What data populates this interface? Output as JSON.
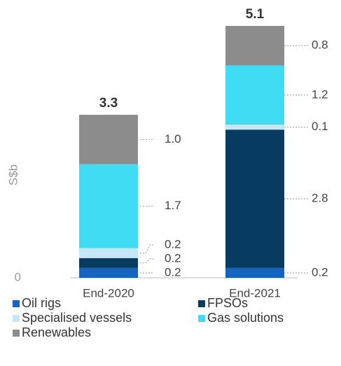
{
  "chart_data": {
    "type": "stacked_bar",
    "ylabel": "S$b",
    "categories": [
      "End-2020",
      "End-2021"
    ],
    "totals": [
      3.3,
      5.1
    ],
    "series": [
      {
        "name": "Oil rigs",
        "color": "#1565c0",
        "values": [
          0.2,
          0.2
        ]
      },
      {
        "name": "FPSOs",
        "color": "#073b60",
        "values": [
          0.2,
          2.8
        ]
      },
      {
        "name": "Specialised vessels",
        "color": "#c6e7f8",
        "values": [
          0.2,
          0.1
        ]
      },
      {
        "name": "Gas solutions",
        "color": "#40dcf4",
        "values": [
          1.7,
          1.2
        ]
      },
      {
        "name": "Renewables",
        "color": "#8c8c8c",
        "values": [
          1.0,
          0.8
        ],
        "value_labels": [
          "1.0",
          "0.8"
        ]
      }
    ],
    "ylim": [
      0,
      5.1
    ],
    "yticks": [
      0
    ]
  }
}
